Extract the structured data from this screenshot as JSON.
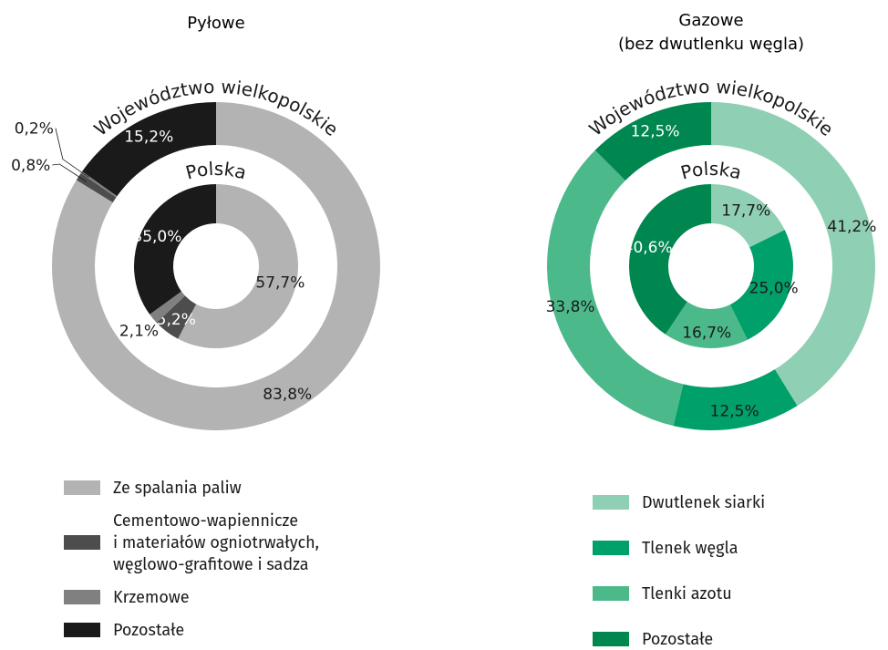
{
  "chart_data": [
    {
      "type": "pie",
      "title": "Pyłowe",
      "categories": [
        "Ze spalania paliw",
        "Cementowo-wapiennicze\ni materiałów ogniotrwałych,\nwęglowo-grafitowe i sadza",
        "Krzemowe",
        "Pozostałe"
      ],
      "colors": [
        "#b3b3b3",
        "#4d4d4d",
        "#808080",
        "#1a1a1a"
      ],
      "rings": [
        {
          "name": "Województwo wielkopolskie",
          "values": [
            83.8,
            0.8,
            0.2,
            15.2
          ],
          "value_labels": [
            "83,8%",
            "0,8%",
            "0,2%",
            "15,2%"
          ]
        },
        {
          "name": "Polska",
          "values": [
            57.7,
            5.2,
            2.1,
            35.0
          ],
          "value_labels": [
            "57,7%",
            "5,2%",
            "2,1%",
            "35,0%"
          ]
        }
      ]
    },
    {
      "type": "pie",
      "title": "Gazowe",
      "subtitle": "(bez dwutlenku węgla)",
      "categories": [
        "Dwutlenek siarki",
        "Tlenek węgla",
        "Tlenki azotu",
        "Pozostałe"
      ],
      "colors": [
        "#8fcfb3",
        "#00a06a",
        "#4cb98b",
        "#00864f"
      ],
      "rings": [
        {
          "name": "Województwo wielkopolskie",
          "values": [
            41.2,
            12.5,
            33.8,
            12.5
          ],
          "value_labels": [
            "41,2%",
            "12,5%",
            "33,8%",
            "12,5%"
          ]
        },
        {
          "name": "Polska",
          "values": [
            17.7,
            25.0,
            16.7,
            40.6
          ],
          "value_labels": [
            "17,7%",
            "25,0%",
            "16,7%",
            "40,6%"
          ]
        }
      ]
    }
  ]
}
